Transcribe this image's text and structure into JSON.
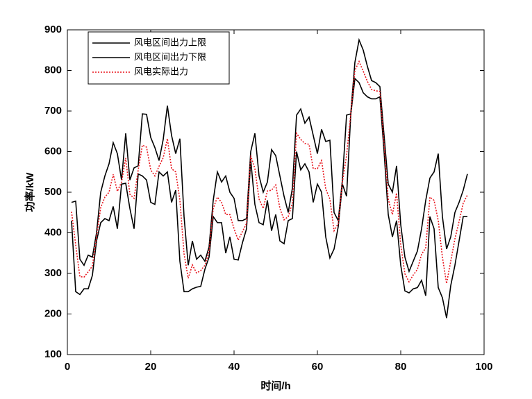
{
  "chart_data": {
    "type": "line",
    "xlabel": "时间/h",
    "ylabel": "功率/kW",
    "x": [
      1,
      2,
      3,
      4,
      5,
      6,
      7,
      8,
      9,
      10,
      11,
      12,
      13,
      14,
      15,
      16,
      17,
      18,
      19,
      20,
      21,
      22,
      23,
      24,
      25,
      26,
      27,
      28,
      29,
      30,
      31,
      32,
      33,
      34,
      35,
      36,
      37,
      38,
      39,
      40,
      41,
      42,
      43,
      44,
      45,
      46,
      47,
      48,
      49,
      50,
      51,
      52,
      53,
      54,
      55,
      56,
      57,
      58,
      59,
      60,
      61,
      62,
      63,
      64,
      65,
      66,
      67,
      68,
      69,
      70,
      71,
      72,
      73,
      74,
      75,
      76,
      77,
      78,
      79,
      80,
      81,
      82,
      83,
      84,
      85,
      86,
      87,
      88,
      89,
      90,
      91,
      92,
      93,
      94,
      95,
      96
    ],
    "series": [
      {
        "name": "风电区间出力上限",
        "color": "#000000",
        "dash": "solid",
        "values": [
          475,
          478,
          335,
          320,
          345,
          340,
          400,
          500,
          540,
          570,
          622,
          595,
          530,
          645,
          530,
          560,
          565,
          693,
          692,
          635,
          610,
          578,
          630,
          713,
          640,
          595,
          632,
          440,
          320,
          380,
          335,
          345,
          330,
          365,
          480,
          550,
          525,
          540,
          500,
          485,
          430,
          430,
          435,
          600,
          645,
          540,
          500,
          525,
          605,
          590,
          540,
          490,
          450,
          510,
          690,
          705,
          670,
          685,
          640,
          595,
          655,
          625,
          628,
          450,
          430,
          530,
          690,
          693,
          820,
          875,
          850,
          810,
          775,
          770,
          760,
          640,
          520,
          500,
          565,
          420,
          340,
          305,
          330,
          355,
          410,
          480,
          535,
          550,
          595,
          440,
          360,
          390,
          450,
          475,
          505,
          545
        ]
      },
      {
        "name": "风电区间出力下限",
        "color": "#000000",
        "dash": "solid",
        "values": [
          430,
          255,
          248,
          262,
          262,
          295,
          380,
          425,
          435,
          430,
          465,
          410,
          520,
          522,
          460,
          410,
          545,
          540,
          530,
          475,
          470,
          550,
          540,
          550,
          475,
          505,
          330,
          255,
          255,
          262,
          266,
          268,
          310,
          340,
          440,
          425,
          425,
          350,
          390,
          335,
          333,
          375,
          410,
          580,
          470,
          425,
          420,
          480,
          405,
          445,
          380,
          373,
          430,
          435,
          600,
          555,
          570,
          550,
          475,
          520,
          500,
          390,
          338,
          360,
          415,
          520,
          490,
          690,
          780,
          770,
          745,
          735,
          730,
          730,
          735,
          600,
          445,
          390,
          430,
          320,
          257,
          252,
          262,
          265,
          283,
          245,
          440,
          410,
          265,
          240,
          190,
          270,
          320,
          380,
          440,
          440
        ]
      },
      {
        "name": "风电实际出力",
        "color": "#e8141c",
        "dash": "dotted",
        "values": [
          452,
          370,
          292,
          291,
          304,
          318,
          390,
          462,
          488,
          500,
          544,
          502,
          525,
          584,
          495,
          485,
          555,
          616,
          611,
          555,
          540,
          564,
          585,
          632,
          558,
          550,
          481,
          348,
          288,
          321,
          301,
          307,
          320,
          353,
          460,
          488,
          475,
          445,
          445,
          410,
          382,
          403,
          423,
          590,
          558,
          483,
          460,
          503,
          505,
          518,
          460,
          432,
          440,
          473,
          645,
          630,
          620,
          618,
          558,
          558,
          578,
          508,
          483,
          405,
          423,
          525,
          590,
          692,
          800,
          822,
          798,
          773,
          753,
          750,
          748,
          620,
          483,
          445,
          498,
          370,
          299,
          279,
          296,
          310,
          347,
          363,
          488,
          480,
          430,
          340,
          275,
          330,
          385,
          428,
          473,
          493
        ]
      }
    ],
    "xlim": [
      0,
      100
    ],
    "xticks": [
      0,
      20,
      40,
      60,
      80,
      100
    ],
    "ylim": [
      100,
      900
    ],
    "yticks": [
      100,
      200,
      300,
      400,
      500,
      600,
      700,
      800,
      900
    ],
    "grid": false,
    "legend": "upper left"
  }
}
